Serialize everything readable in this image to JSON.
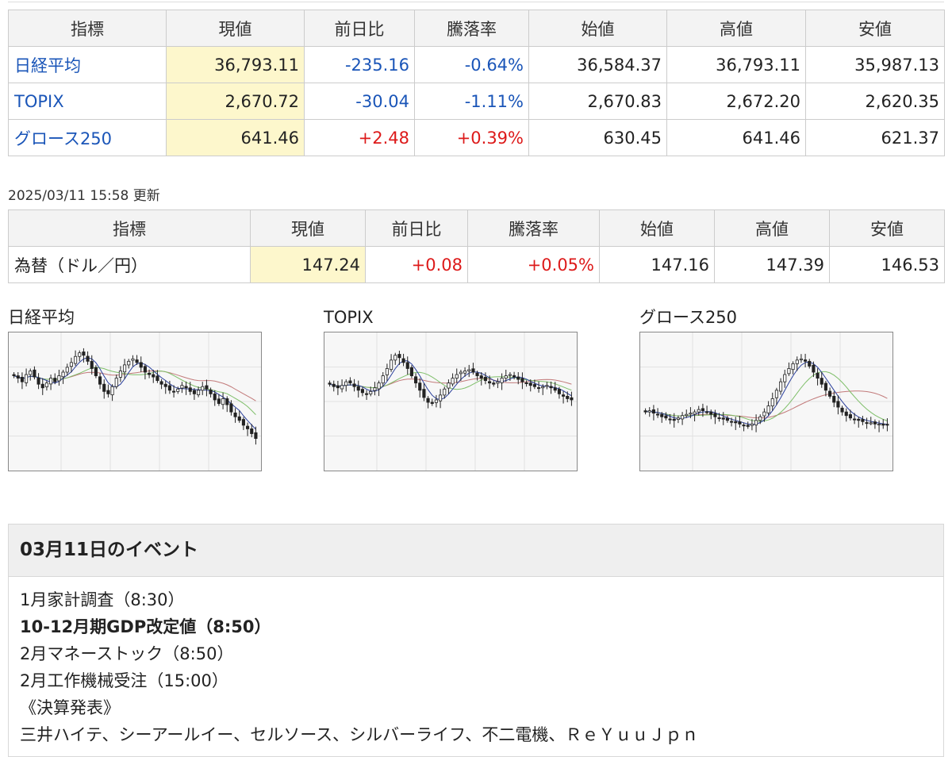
{
  "tables": {
    "indices": {
      "headers": [
        "指標",
        "現値",
        "前日比",
        "騰落率",
        "始値",
        "高値",
        "安値"
      ],
      "rows": [
        {
          "name": "日経平均",
          "current": "36,793.11",
          "change": "-235.16",
          "change_pct": "-0.64%",
          "open": "36,584.37",
          "high": "36,793.11",
          "low": "35,987.13"
        },
        {
          "name": "TOPIX",
          "current": "2,670.72",
          "change": "-30.04",
          "change_pct": "-1.11%",
          "open": "2,670.83",
          "high": "2,672.20",
          "low": "2,620.35"
        },
        {
          "name": "グロース250",
          "current": "641.46",
          "change": "+2.48",
          "change_pct": "+0.39%",
          "open": "630.45",
          "high": "641.46",
          "low": "621.37"
        }
      ]
    },
    "updated": "2025/03/11 15:58 更新",
    "fx": {
      "headers": [
        "指標",
        "現値",
        "前日比",
        "騰落率",
        "始値",
        "高値",
        "安値"
      ],
      "rows": [
        {
          "name": "為替（ドル／円）",
          "current": "147.24",
          "change": "+0.08",
          "change_pct": "+0.05%",
          "open": "147.16",
          "high": "147.39",
          "low": "146.53"
        }
      ]
    }
  },
  "charts": [
    {
      "title": "日経平均",
      "closes": [
        72,
        70,
        67,
        73,
        76,
        71,
        65,
        62,
        66,
        70,
        67,
        72,
        75,
        79,
        83,
        88,
        91,
        89,
        84,
        78,
        72,
        65,
        59,
        57,
        63,
        70,
        76,
        81,
        84,
        86,
        83,
        79,
        75,
        73,
        71,
        68,
        65,
        63,
        60,
        59,
        61,
        64,
        62,
        59,
        57,
        60,
        63,
        61,
        57,
        52,
        49,
        53,
        48,
        42,
        38,
        35,
        31,
        28,
        24,
        20
      ]
    },
    {
      "title": "TOPIX",
      "closes": [
        65,
        63,
        62,
        64,
        67,
        66,
        63,
        60,
        58,
        57,
        59,
        62,
        66,
        72,
        78,
        85,
        89,
        87,
        83,
        78,
        72,
        66,
        60,
        54,
        50,
        49,
        52,
        56,
        61,
        66,
        70,
        73,
        75,
        76,
        77,
        75,
        72,
        70,
        68,
        66,
        65,
        67,
        70,
        72,
        73,
        71,
        69,
        67,
        66,
        64,
        63,
        62,
        63,
        64,
        62,
        60,
        57,
        55,
        53,
        52
      ]
    },
    {
      "title": "グロース250",
      "closes": [
        42,
        43,
        41,
        40,
        38,
        37,
        36,
        35,
        37,
        39,
        40,
        41,
        42,
        44,
        43,
        42,
        40,
        38,
        37,
        36,
        35,
        34,
        33,
        32,
        31,
        30,
        32,
        35,
        38,
        42,
        47,
        53,
        60,
        67,
        73,
        78,
        82,
        85,
        86,
        84,
        80,
        75,
        70,
        65,
        60,
        55,
        50,
        46,
        42,
        39,
        37,
        36,
        35,
        34,
        33,
        33,
        32,
        32,
        31,
        31
      ]
    }
  ],
  "main": {
    "section_events": {
      "title": "03月11日のイベント",
      "items": [
        {
          "text": "1月家計調査（8:30）",
          "bold": false
        },
        {
          "text": "10-12月期GDP改定値（8:50）",
          "bold": true
        },
        {
          "text": "2月マネーストック（8:50）",
          "bold": false
        },
        {
          "text": "2月工作機械受注（15:00）",
          "bold": false
        },
        {
          "text": "《決算発表》",
          "bold": false
        },
        {
          "text": "三井ハイテ、シーアールイー、セルソース、シルバーライフ、不二電機、ＲｅＹｕｕＪｐｎ",
          "bold": false
        }
      ]
    }
  },
  "colors": {
    "up_red": "#dd1a1a",
    "down_blue": "#1a55b8",
    "current_bg": "#fdf7cc",
    "ma_short": "#2a3f9c",
    "ma_mid": "#7fbf6a",
    "ma_long": "#c27a7a"
  }
}
